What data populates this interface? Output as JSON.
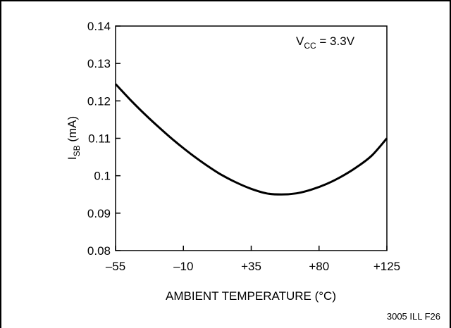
{
  "chart_data": {
    "type": "line",
    "x_ticks": [
      "–55",
      "–10",
      "+35",
      "+80",
      "+125"
    ],
    "y_ticks": [
      "0.14",
      "0.13",
      "0.12",
      "0.11",
      "0.1",
      "0.09",
      "0.08"
    ],
    "xlabel": "AMBIENT TEMPERATURE (°C)",
    "ylabel": {
      "main": "I",
      "sub": "SB",
      "unit": " (mA)"
    },
    "annotation": {
      "main": "V",
      "sub": "CC",
      "rest": " = 3.3V"
    },
    "figure_id": "3005 ILL F26",
    "xlim": [
      -55,
      125
    ],
    "ylim": [
      0.08,
      0.14
    ],
    "grid": false,
    "series": [
      {
        "x": [
          -55,
          -45,
          -35,
          -25,
          -15,
          -5,
          5,
          15,
          25,
          35,
          45,
          55,
          65,
          75,
          85,
          95,
          105,
          115,
          125
        ],
        "y": [
          0.1245,
          0.1202,
          0.1162,
          0.1125,
          0.109,
          0.1058,
          0.1029,
          0.1003,
          0.0982,
          0.0965,
          0.0953,
          0.095,
          0.0953,
          0.0963,
          0.0978,
          0.0998,
          0.1023,
          0.1054,
          0.11
        ]
      }
    ]
  }
}
